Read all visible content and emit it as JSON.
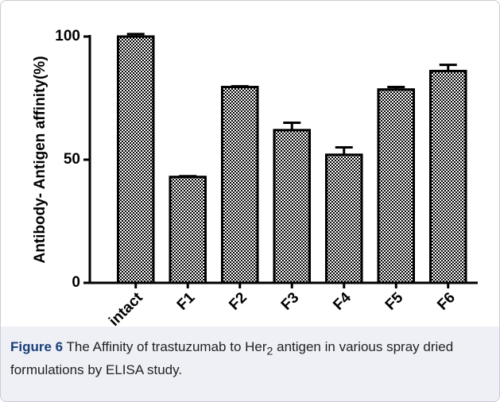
{
  "chart_data": {
    "type": "bar",
    "ylabel": "Antibody- Antigen affinity(%)",
    "categories": [
      "intact",
      "F1",
      "F2",
      "F3",
      "F4",
      "F5",
      "F6"
    ],
    "values": [
      100,
      43,
      79.5,
      62,
      52,
      78.5,
      86
    ],
    "errors": [
      1,
      0.3,
      0.3,
      3,
      3,
      1,
      2.5
    ],
    "ylim": [
      0,
      100
    ],
    "yticks": [
      0,
      50,
      100
    ]
  },
  "caption": {
    "label": "Figure 6",
    "text_before": " The Affinity of trastuzumab to Her",
    "subscript": "2",
    "text_after": " antigen in various spray dried formulations by ELISA study."
  }
}
